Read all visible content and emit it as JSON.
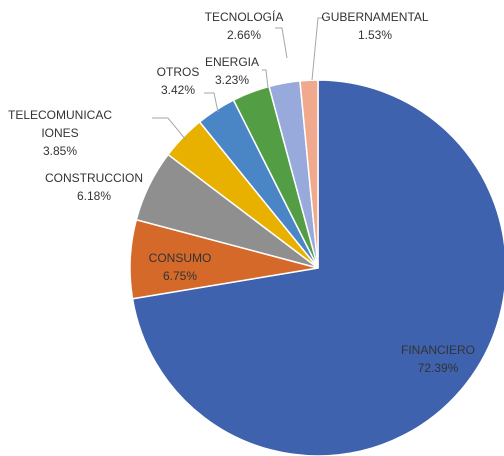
{
  "chart_data": {
    "type": "pie",
    "categories": [
      "FINANCIERO",
      "CONSUMO",
      "CONSTRUCCION",
      "TELECOMUNICACIONES",
      "OTROS",
      "ENERGIA",
      "TECNOLOGÍA",
      "GUBERNAMENTAL"
    ],
    "values": [
      72.39,
      6.75,
      6.18,
      3.85,
      3.42,
      3.23,
      2.66,
      1.53
    ],
    "value_labels": [
      "72.39%",
      "6.75%",
      "6.18%",
      "3.85%",
      "3.42%",
      "3.23%",
      "2.66%",
      "1.53%"
    ],
    "colors": [
      "#3f62ae",
      "#d4692a",
      "#8f8f8f",
      "#e8b100",
      "#4a86c5",
      "#539e45",
      "#98aadc",
      "#f0a98c"
    ]
  }
}
